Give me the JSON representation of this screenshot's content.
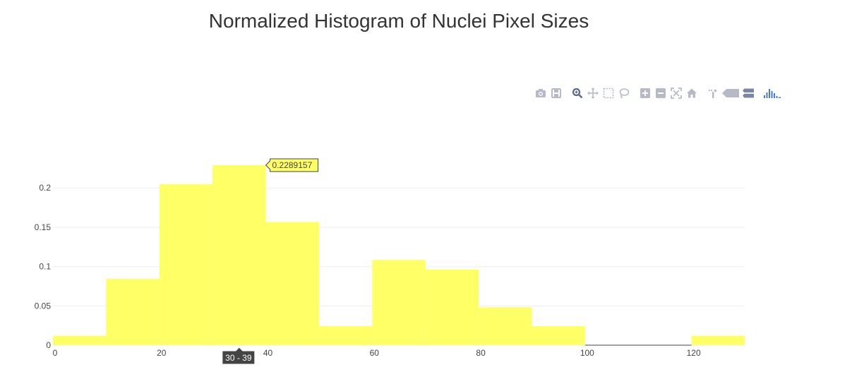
{
  "chart_data": {
    "type": "bar",
    "title": "Normalized Histogram of Nuclei Pixel Sizes",
    "xlabel": "",
    "ylabel": "",
    "bin_width": 10,
    "bins": [
      {
        "x0": 0,
        "x1": 10,
        "value": 0.0120482
      },
      {
        "x0": 10,
        "x1": 20,
        "value": 0.0843373
      },
      {
        "x0": 20,
        "x1": 30,
        "value": 0.2048193
      },
      {
        "x0": 30,
        "x1": 40,
        "value": 0.2289157
      },
      {
        "x0": 40,
        "x1": 50,
        "value": 0.1566265
      },
      {
        "x0": 50,
        "x1": 60,
        "value": 0.0240964
      },
      {
        "x0": 60,
        "x1": 70,
        "value": 0.1084337
      },
      {
        "x0": 70,
        "x1": 80,
        "value": 0.0963855
      },
      {
        "x0": 80,
        "x1": 90,
        "value": 0.0481928
      },
      {
        "x0": 90,
        "x1": 100,
        "value": 0.0240964
      },
      {
        "x0": 100,
        "x1": 110,
        "value": 0
      },
      {
        "x0": 110,
        "x1": 120,
        "value": 0
      },
      {
        "x0": 120,
        "x1": 130,
        "value": 0.0120482
      }
    ],
    "xlim": [
      0,
      130
    ],
    "ylim": [
      0,
      0.2289157
    ],
    "xticks": [
      0,
      20,
      40,
      60,
      80,
      100,
      120
    ],
    "xtick_labels": [
      "0",
      "20",
      "40",
      "60",
      "80",
      "100",
      "120"
    ],
    "yticks": [
      0,
      0.05,
      0.1,
      0.15,
      0.2
    ],
    "ytick_labels": [
      "0",
      "0.05",
      "0.1",
      "0.15",
      "0.2"
    ],
    "grid": true,
    "bar_color": "#ffff66",
    "hover": {
      "bin_index": 3,
      "value_label": "0.2289157",
      "range_label": "30 - 39"
    }
  },
  "modebar": {
    "icons": [
      "camera-icon",
      "save-icon",
      "zoom-icon",
      "pan-icon",
      "box-select-icon",
      "lasso-select-icon",
      "zoom-in-icon",
      "zoom-out-icon",
      "autoscale-icon",
      "reset-axes-icon",
      "spike-lines-icon",
      "hover-closest-icon",
      "hover-compare-icon",
      "plotly-logo-icon"
    ],
    "icon_color": "#b6bac8",
    "active_color": "#5f6a86",
    "logo_color": "#447adb"
  }
}
